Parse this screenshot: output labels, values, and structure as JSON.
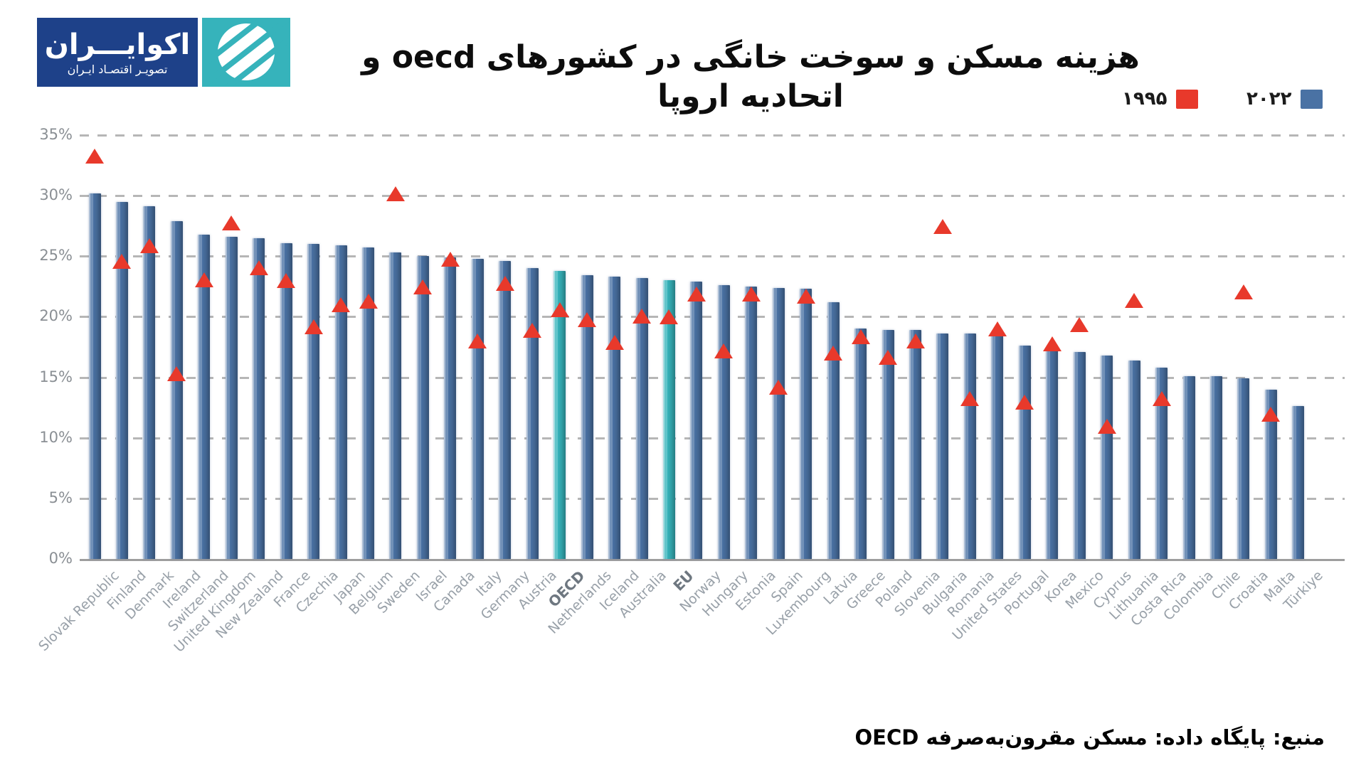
{
  "brand": {
    "name": "اکوایـــران",
    "tagline": "تصویـر اقتصـاد ایـران",
    "blue": "#1e4189",
    "teal": "#36b3bb"
  },
  "title": "هزینه مسکن و سوخت خانگی در کشورهای oecd و اتحادیه اروپا",
  "legend": [
    {
      "series": "1995",
      "label": "۱۹۹۵",
      "color": "#e8392b"
    },
    {
      "series": "2022",
      "label": "۲۰۲۲",
      "color": "#4a72a4"
    }
  ],
  "source": "منبع: پایگاه داده: مسکن مقرون‌به‌صرفه OECD",
  "chart_data": {
    "type": "bar",
    "title": "هزینه مسکن و سوخت خانگی در کشورهای oecd و اتحادیه اروپا",
    "xlabel": "",
    "ylabel": "",
    "ylim": [
      0,
      35
    ],
    "ytick_step": 5,
    "ytick_suffix": "%",
    "grid": "horizontal-dashed",
    "legend_position": "top-right",
    "highlight": {
      "categories": [
        "OECD",
        "EU"
      ],
      "color": "#36b3bb"
    },
    "categories": [
      "Slovak Republic",
      "Finland",
      "Denmark",
      "Ireland",
      "Switzerland",
      "United Kingdom",
      "New Zealand",
      "France",
      "Czechia",
      "Japan",
      "Belgium",
      "Sweden",
      "Israel",
      "Canada",
      "Italy",
      "Germany",
      "Austria",
      "OECD",
      "Netherlands",
      "Iceland",
      "Australia",
      "EU",
      "Norway",
      "Hungary",
      "Estonia",
      "Spain",
      "Luxembourg",
      "Latvia",
      "Greece",
      "Poland",
      "Slovenia",
      "Bulgaria",
      "Romania",
      "United States",
      "Portugal",
      "Korea",
      "Mexico",
      "Cyprus",
      "Lithuania",
      "Costa Rica",
      "Colombia",
      "Chile",
      "Croatia",
      "Malta",
      "Türkiye"
    ],
    "series": [
      {
        "name": "2022",
        "marker": "bar",
        "color": "#4a72a4",
        "values": [
          30.2,
          29.5,
          29.1,
          27.9,
          26.8,
          26.6,
          26.5,
          26.1,
          26.0,
          25.9,
          25.7,
          25.3,
          25.0,
          24.9,
          24.8,
          24.6,
          24.0,
          23.8,
          23.4,
          23.3,
          23.2,
          23.0,
          22.9,
          22.6,
          22.5,
          22.4,
          22.3,
          21.2,
          19.0,
          18.9,
          18.9,
          18.6,
          18.6,
          18.5,
          17.6,
          17.4,
          17.1,
          16.8,
          16.4,
          15.8,
          15.1,
          15.1,
          14.9,
          14.0,
          12.6
        ]
      },
      {
        "name": "1995",
        "marker": "triangle",
        "color": "#e8392b",
        "values": [
          33.3,
          24.6,
          25.9,
          15.3,
          23.1,
          27.8,
          24.1,
          23.0,
          19.2,
          21.0,
          21.3,
          30.2,
          22.5,
          24.8,
          18.0,
          22.8,
          18.9,
          20.6,
          19.8,
          17.9,
          20.1,
          20.0,
          21.9,
          17.2,
          21.9,
          14.2,
          21.7,
          17.0,
          18.4,
          16.7,
          18.0,
          27.5,
          13.3,
          19.0,
          13.0,
          17.8,
          19.4,
          11.0,
          21.4,
          13.3,
          null,
          null,
          22.1,
          12.0,
          null
        ]
      }
    ]
  }
}
